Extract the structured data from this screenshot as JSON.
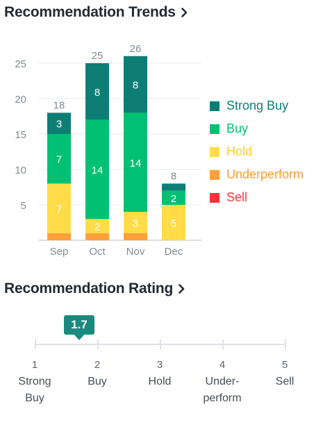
{
  "trends": {
    "title": "Recommendation Trends"
  },
  "rating": {
    "title": "Recommendation Rating",
    "value": "1.7",
    "value_num": 1.7,
    "scale": [
      {
        "num": "1",
        "label": "Strong Buy"
      },
      {
        "num": "2",
        "label": "Buy"
      },
      {
        "num": "3",
        "label": "Hold"
      },
      {
        "num": "4",
        "label": "Under-perform"
      },
      {
        "num": "5",
        "label": "Sell"
      }
    ]
  },
  "colors": {
    "strong_buy": "#0e7e74",
    "buy": "#00c073",
    "hold": "#ffdc48",
    "underperform": "#ffa03a",
    "sell": "#ff333a",
    "axis_text": "#828c93",
    "grid": "#e6e8eb"
  },
  "chart_data": {
    "type": "bar",
    "stacked": true,
    "categories": [
      "Sep",
      "Oct",
      "Nov",
      "Dec"
    ],
    "series": [
      {
        "name": "Strong Buy",
        "color": "#0e7e74",
        "values": [
          3,
          8,
          8,
          1
        ]
      },
      {
        "name": "Buy",
        "color": "#00c073",
        "values": [
          7,
          14,
          14,
          2
        ]
      },
      {
        "name": "Hold",
        "color": "#ffdc48",
        "values": [
          7,
          2,
          3,
          5
        ]
      },
      {
        "name": "Underperform",
        "color": "#ffa03a",
        "values": [
          1,
          1,
          1,
          0
        ]
      },
      {
        "name": "Sell",
        "color": "#ff333a",
        "values": [
          0,
          0,
          0,
          0
        ]
      }
    ],
    "segment_labels": [
      [
        "3",
        "8",
        "8",
        ""
      ],
      [
        "7",
        "14",
        "14",
        "2"
      ],
      [
        "7",
        "2",
        "3",
        "5"
      ],
      [
        "",
        "",
        "",
        ""
      ],
      [
        "",
        "",
        "",
        ""
      ]
    ],
    "totals": [
      "18",
      "25",
      "26",
      "8"
    ],
    "y_ticks": [
      "5",
      "10",
      "15",
      "20",
      "25"
    ],
    "ylim": [
      0,
      26
    ],
    "grid": true,
    "legend_placement": "right"
  }
}
